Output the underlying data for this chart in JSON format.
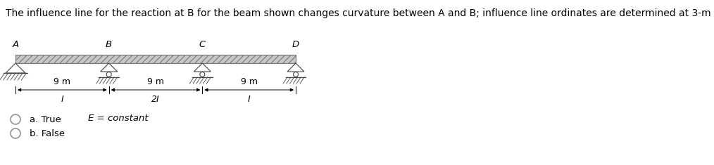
{
  "question_text": "The influence line for the reaction at B for the beam shown changes curvature between A and B; influence line ordinates are determined at 3-m intervals.",
  "question_font_size": 10.0,
  "beam_labels": [
    "A",
    "B",
    "C",
    "D"
  ],
  "span_labels": [
    "9 m",
    "9 m",
    "9 m"
  ],
  "moment_labels": [
    "I",
    "2I",
    "I"
  ],
  "e_label": "E = constant",
  "options": [
    "a. True",
    "b. False"
  ],
  "background_color": "#ffffff",
  "text_color": "#000000",
  "support_color": "#444444",
  "beam_face_color": "#c8c8c8",
  "beam_edge_color": "#555555"
}
